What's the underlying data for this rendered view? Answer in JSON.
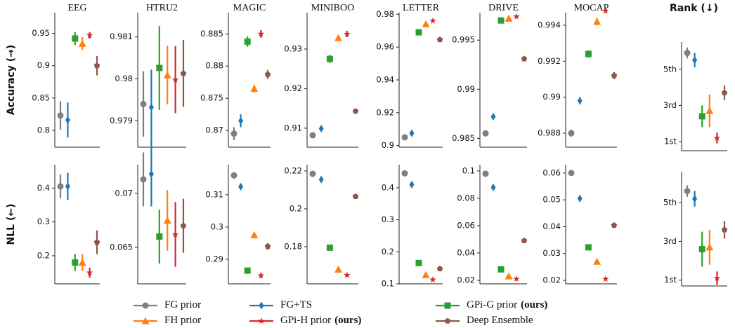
{
  "methods": [
    {
      "name": "FG prior",
      "color": "#7f7f7f",
      "marker": "circle"
    },
    {
      "name": "FG+TS",
      "color": "#1f77b4",
      "marker": "diamond"
    },
    {
      "name": "GPi-G prior",
      "tag": "(ours)",
      "color": "#2ca02c",
      "marker": "square"
    },
    {
      "name": "FH prior",
      "color": "#ff7f0e",
      "marker": "triangle"
    },
    {
      "name": "GPi-H prior",
      "tag": "(ours)",
      "color": "#d62728",
      "marker": "star"
    },
    {
      "name": "Deep Ensemble",
      "color": "#8c564b",
      "marker": "pentagon"
    }
  ],
  "chart_data": [
    {
      "type": "errorbar",
      "title": "EEG",
      "ylabel": "Accuracy (→)",
      "ylim": [
        0.774,
        0.982
      ],
      "yticks": [
        0.8,
        0.85,
        0.9,
        0.95
      ],
      "values": [
        0.823,
        0.816,
        0.942,
        0.934,
        0.947,
        0.9
      ],
      "errors": [
        0.022,
        0.027,
        0.01,
        0.01,
        0.005,
        0.015
      ]
    },
    {
      "type": "errorbar",
      "title": "HTRU2",
      "ylim": [
        0.97837,
        0.98158
      ],
      "yticks": [
        0.979,
        0.98,
        0.981
      ],
      "values": [
        0.9794,
        0.97932,
        0.98026,
        0.98009,
        0.97998,
        0.98013
      ],
      "errors": [
        0.00078,
        0.0009,
        0.001,
        0.0007,
        0.0008,
        0.0008
      ]
    },
    {
      "type": "errorbar",
      "title": "MAGIC",
      "ylim": [
        0.8674,
        0.8883
      ],
      "yticks": [
        0.87,
        0.875,
        0.88,
        0.885
      ],
      "values": [
        0.8695,
        0.8715,
        0.8838,
        0.8765,
        0.885,
        0.8787
      ],
      "errors": [
        0.001,
        0.001,
        0.0008,
        0.0006,
        0.0006,
        0.0007
      ]
    },
    {
      "type": "errorbar",
      "title": "MINIBOO",
      "ylim": [
        0.9052,
        0.9392
      ],
      "yticks": [
        0.91,
        0.92,
        0.93
      ],
      "values": [
        0.9082,
        0.9099,
        0.9275,
        0.9328,
        0.9338,
        0.9143
      ],
      "errors": [
        0.0003,
        0.0003,
        0.001,
        0.0005,
        0.0008,
        0.0003
      ]
    },
    {
      "type": "errorbar",
      "title": "LETTER",
      "ylim": [
        0.899,
        0.981
      ],
      "yticks": [
        0.9,
        0.92,
        0.94,
        0.96,
        0.98
      ],
      "values": [
        0.905,
        0.9075,
        0.969,
        0.974,
        0.976,
        0.9645
      ],
      "errors": [
        0.0005,
        0.0005,
        0.0005,
        0.0005,
        0.0005,
        0.0005
      ]
    },
    {
      "type": "errorbar",
      "title": "DRIVE",
      "ylim": [
        0.9841,
        0.9978
      ],
      "yticks": [
        0.985,
        0.99,
        0.995
      ],
      "values": [
        0.9855,
        0.9872,
        0.997,
        0.9972,
        0.9974,
        0.9931
      ],
      "errors": [
        0.0001,
        0.0001,
        0.0001,
        0.0001,
        0.0001,
        0.0001
      ]
    },
    {
      "type": "errorbar",
      "title": "MOCAP",
      "ylim": [
        0.98722,
        0.9947
      ],
      "yticks": [
        0.988,
        0.99,
        0.992,
        0.994
      ],
      "values": [
        0.988,
        0.9898,
        0.9924,
        0.9942,
        0.9948,
        0.9912
      ],
      "errors": [
        0.0002,
        0.0002,
        0.0002,
        0.0002,
        0.0001,
        0.0002
      ]
    },
    {
      "type": "errorbar",
      "title": "Rank (↓)",
      "ylim": [
        0.5,
        6.5
      ],
      "yticks": [
        {
          "value": 1,
          "label": "1st"
        },
        {
          "value": 3,
          "label": "3rd"
        },
        {
          "value": 5,
          "label": "5th"
        }
      ],
      "values": [
        5.9,
        5.5,
        2.4,
        2.7,
        1.2,
        3.7
      ],
      "errors": [
        0.3,
        0.4,
        0.6,
        0.9,
        0.3,
        0.4
      ]
    },
    {
      "type": "errorbar",
      "ylabel": "NLL (←)",
      "ylim": [
        0.117,
        0.469
      ],
      "yticks": [
        0.2,
        0.3,
        0.4
      ],
      "values": [
        0.405,
        0.405,
        0.18,
        0.18,
        0.15,
        0.24
      ],
      "errors": [
        0.035,
        0.04,
        0.025,
        0.025,
        0.015,
        0.035
      ]
    },
    {
      "type": "errorbar",
      "ylim": [
        0.06162,
        0.07266
      ],
      "yticks": [
        0.065,
        0.07
      ],
      "values": [
        0.0713,
        0.0718,
        0.066,
        0.0675,
        0.0662,
        0.067
      ],
      "errors": [
        0.0025,
        0.003,
        0.0025,
        0.0028,
        0.003,
        0.0025
      ]
    },
    {
      "type": "errorbar",
      "ylim": [
        0.2824,
        0.3193
      ],
      "yticks": [
        0.29,
        0.3,
        0.31
      ],
      "values": [
        0.316,
        0.3125,
        0.2865,
        0.2975,
        0.285,
        0.294
      ],
      "errors": [
        0.001,
        0.001,
        0.001,
        0.0007,
        0.0008,
        0.001
      ]
    },
    {
      "type": "errorbar",
      "ylim": [
        0.1604,
        0.2233
      ],
      "yticks": [
        0.18,
        0.2,
        0.22
      ],
      "values": [
        0.2185,
        0.2155,
        0.1795,
        0.168,
        0.165,
        0.2065
      ],
      "errors": [
        0.0005,
        0.0005,
        0.001,
        0.0005,
        0.0005,
        0.0005
      ]
    },
    {
      "type": "errorbar",
      "ylim": [
        0.1,
        0.472
      ],
      "yticks": [
        0.1,
        0.2,
        0.3,
        0.4
      ],
      "values": [
        0.445,
        0.41,
        0.165,
        0.128,
        0.113,
        0.147
      ],
      "errors": [
        0.002,
        0.002,
        0.002,
        0.002,
        0.002,
        0.002
      ]
    },
    {
      "type": "errorbar",
      "ylim": [
        0.0174,
        0.1046
      ],
      "yticks": [
        0.02,
        0.04,
        0.06,
        0.08,
        0.1
      ],
      "values": [
        0.098,
        0.088,
        0.028,
        0.023,
        0.021,
        0.049
      ],
      "errors": [
        0.0005,
        0.0005,
        0.0005,
        0.0005,
        0.0005,
        0.0005
      ]
    },
    {
      "type": "errorbar",
      "ylim": [
        0.0187,
        0.0631
      ],
      "yticks": [
        0.02,
        0.03,
        0.04,
        0.05,
        0.06
      ],
      "values": [
        0.06,
        0.0505,
        0.0323,
        0.027,
        0.0205,
        0.0405
      ],
      "errors": [
        0.0003,
        0.0003,
        0.0003,
        0.0003,
        0.0003,
        0.0003
      ]
    },
    {
      "type": "errorbar",
      "ylim": [
        0.7,
        6.6
      ],
      "yticks": [
        {
          "value": 1,
          "label": "1st"
        },
        {
          "value": 3,
          "label": "3rd"
        },
        {
          "value": 5,
          "label": "5th"
        }
      ],
      "values": [
        5.6,
        5.2,
        2.6,
        2.7,
        1.1,
        3.6
      ],
      "errors": [
        0.3,
        0.4,
        0.9,
        0.9,
        0.35,
        0.45
      ]
    }
  ]
}
